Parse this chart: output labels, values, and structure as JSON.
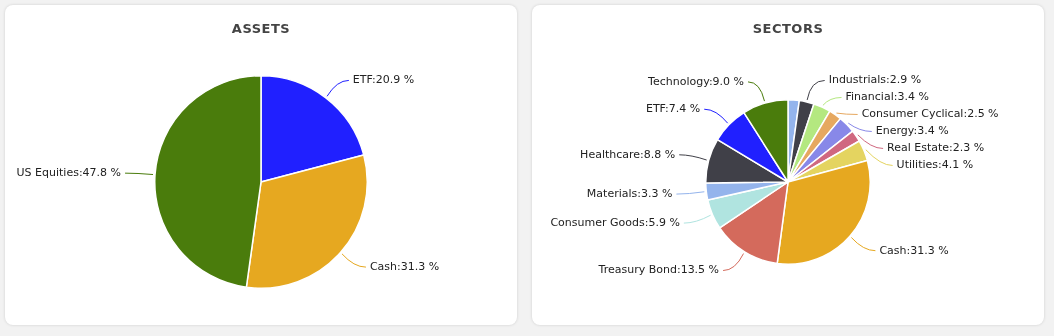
{
  "chart_data": [
    {
      "type": "pie",
      "title": "ASSETS",
      "categories": [
        "ETF",
        "Cash",
        "US Equities"
      ],
      "values": [
        20.9,
        31.3,
        47.8
      ],
      "value_labels": [
        "20.9 %",
        "31.3 %",
        "47.8 %"
      ],
      "colors": [
        "#2020ff",
        "#e6a820",
        "#4a7c0c"
      ]
    },
    {
      "type": "pie",
      "title": "SECTORS",
      "categories": [
        null,
        "Industrials",
        "Financial",
        "Consumer Cyclical",
        "Energy",
        "Real Estate",
        "Utilities",
        "Cash",
        "Treasury Bond",
        "Consumer Goods",
        "Materials",
        "Healthcare",
        "ETF",
        "Technology"
      ],
      "values": [
        2.2,
        2.9,
        3.4,
        2.5,
        3.4,
        2.3,
        4.1,
        31.3,
        13.5,
        5.9,
        3.3,
        8.8,
        7.4,
        9.0
      ],
      "value_labels": [
        null,
        "2.9 %",
        "3.4 %",
        "2.5 %",
        "3.4 %",
        "2.3 %",
        "4.1 %",
        "31.3 %",
        "13.5 %",
        "5.9 %",
        "3.3 %",
        "8.8 %",
        "7.4 %",
        "9.0 %"
      ],
      "colors": [
        "#94b4ec",
        "#404048",
        "#b4e880",
        "#e6a860",
        "#8888e8",
        "#d06880",
        "#e4d460",
        "#e6a820",
        "#d46a5c",
        "#b0e4e0",
        "#94b4ec",
        "#404048",
        "#2020ff",
        "#4a7c0c"
      ]
    }
  ]
}
